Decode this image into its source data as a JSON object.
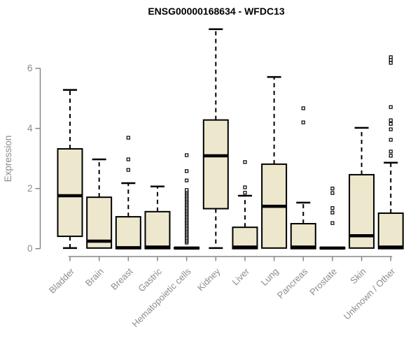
{
  "title": "ENSG00000168634 - WFDC13",
  "chart_data": {
    "type": "boxplot",
    "title": "ENSG00000168634 - WFDC13",
    "xlabel": "",
    "ylabel": "Expression",
    "ylim": [
      0,
      7.45
    ],
    "yticks": [
      0,
      2,
      4,
      6
    ],
    "grid": false,
    "legend": false,
    "categories": [
      "Bladder",
      "Brain",
      "Breast",
      "Gastric",
      "Hematopoietic cells",
      "Kidney",
      "Liver",
      "Lung",
      "Pancreas",
      "Prostate",
      "Skin",
      "Unknown / Other"
    ],
    "series": [
      {
        "category": "Bladder",
        "whisker_low": 0.02,
        "q1": 0.41,
        "median": 1.76,
        "q3": 3.32,
        "whisker_high": 5.28,
        "outliers": []
      },
      {
        "category": "Brain",
        "whisker_low": 0.0,
        "q1": 0.02,
        "median": 0.25,
        "q3": 1.71,
        "whisker_high": 2.97,
        "outliers": []
      },
      {
        "category": "Breast",
        "whisker_low": 0.0,
        "q1": 0.0,
        "median": 0.03,
        "q3": 1.06,
        "whisker_high": 2.18,
        "outliers": [
          2.62,
          2.97,
          3.69
        ]
      },
      {
        "category": "Gastric",
        "whisker_low": 0.0,
        "q1": 0.0,
        "median": 0.05,
        "q3": 1.23,
        "whisker_high": 2.07,
        "outliers": []
      },
      {
        "category": "Hematopoietic cells",
        "whisker_low": 0.0,
        "q1": 0.0,
        "median": 0.02,
        "q3": 0.04,
        "whisker_high": 0.06,
        "outliers": [
          0.2,
          0.25,
          0.3,
          0.35,
          0.4,
          0.45,
          0.5,
          0.55,
          0.6,
          0.65,
          0.7,
          0.75,
          0.8,
          0.85,
          0.9,
          0.95,
          1.0,
          1.05,
          1.1,
          1.15,
          1.2,
          1.25,
          1.3,
          1.35,
          1.4,
          1.45,
          1.5,
          1.55,
          1.6,
          1.65,
          1.7,
          1.75,
          1.8,
          1.85,
          1.9,
          1.95,
          2.27,
          2.58,
          3.11
        ]
      },
      {
        "category": "Kidney",
        "whisker_low": 0.02,
        "q1": 1.33,
        "median": 3.09,
        "q3": 4.28,
        "whisker_high": 7.3,
        "outliers": []
      },
      {
        "category": "Liver",
        "whisker_low": 0.0,
        "q1": 0.0,
        "median": 0.05,
        "q3": 0.71,
        "whisker_high": 1.76,
        "outliers": [
          1.86,
          2.04,
          2.88
        ]
      },
      {
        "category": "Lung",
        "whisker_low": 0.02,
        "q1": 0.02,
        "median": 1.41,
        "q3": 2.81,
        "whisker_high": 5.71,
        "outliers": []
      },
      {
        "category": "Pancreas",
        "whisker_low": 0.0,
        "q1": 0.0,
        "median": 0.05,
        "q3": 0.83,
        "whisker_high": 1.53,
        "outliers": [
          4.2,
          4.67
        ]
      },
      {
        "category": "Prostate",
        "whisker_low": 0.0,
        "q1": 0.0,
        "median": 0.02,
        "q3": 0.04,
        "whisker_high": 0.05,
        "outliers": [
          0.85,
          1.2,
          1.35,
          1.85,
          2.0
        ]
      },
      {
        "category": "Skin",
        "whisker_low": 0.02,
        "q1": 0.02,
        "median": 0.43,
        "q3": 2.46,
        "whisker_high": 4.02,
        "outliers": []
      },
      {
        "category": "Unknown / Other",
        "whisker_low": 0.0,
        "q1": 0.0,
        "median": 0.05,
        "q3": 1.18,
        "whisker_high": 2.86,
        "outliers": [
          3.09,
          3.23,
          3.62,
          3.97,
          4.15,
          4.27,
          4.71,
          6.18,
          6.28,
          6.37
        ]
      }
    ],
    "colors": {
      "background": "#ffffff",
      "box_fill": "#EDE8CD",
      "box_border": "#000000",
      "median": "#000000",
      "whisker": "#000000",
      "outlier_border": "#000000",
      "axis": "#878787",
      "tick_label": "#8c8c8c",
      "title": "#000000"
    }
  }
}
